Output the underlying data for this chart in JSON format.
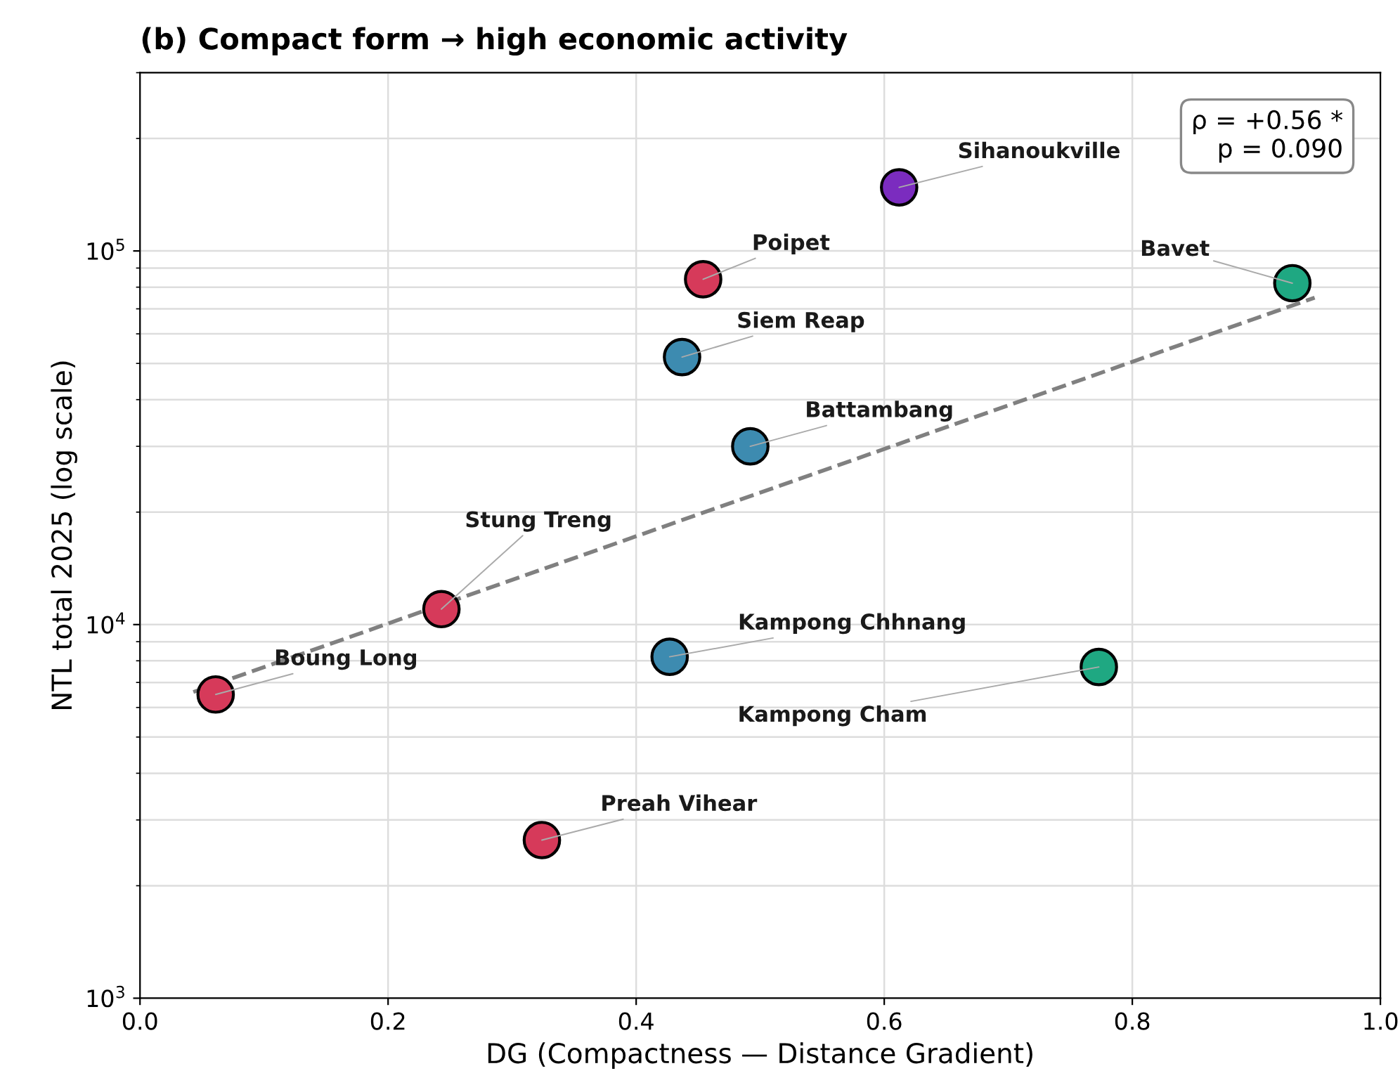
{
  "chart_data": {
    "type": "scatter",
    "title": "(b) Compact form → high economic activity",
    "xlabel": "DG (Compactness — Distance Gradient)",
    "ylabel": "NTL total 2025 (log scale)",
    "series": [
      {
        "x": [
          0.612,
          0.454,
          0.929,
          0.437,
          0.492,
          0.243,
          0.427,
          0.773,
          0.061,
          0.324
        ],
        "values": [
          148000,
          84000,
          82000,
          52000,
          30000,
          11000,
          8200,
          7700,
          6500,
          2650
        ],
        "colors": [
          "#7b2cbf",
          "#d63a5a",
          "#1fa882",
          "#3d8bb0",
          "#3d8bb0",
          "#d63a5a",
          "#3d8bb0",
          "#1fa882",
          "#d63a5a",
          "#d63a5a"
        ],
        "marker": "circle"
      },
      {
        "type": "line",
        "x": [
          0.043,
          0.947
        ],
        "values": [
          6600,
          75000
        ],
        "color": "#808080",
        "line_style": "dashed"
      }
    ],
    "annotations": [
      {
        "text": "Sihanoukville",
        "x": 0.612,
        "y": 148000
      },
      {
        "text": "Poipet",
        "x": 0.454,
        "y": 84000
      },
      {
        "text": "Bavet",
        "x": 0.929,
        "y": 82000
      },
      {
        "text": "Siem Reap",
        "x": 0.437,
        "y": 52000
      },
      {
        "text": "Battambang",
        "x": 0.492,
        "y": 30000
      },
      {
        "text": "Stung Treng",
        "x": 0.243,
        "y": 11000
      },
      {
        "text": "Kampong Chhnang",
        "x": 0.427,
        "y": 8200
      },
      {
        "text": "Kampong Cham",
        "x": 0.773,
        "y": 7700
      },
      {
        "text": "Boung Long",
        "x": 0.061,
        "y": 6500
      },
      {
        "text": "Preah Vihear",
        "x": 0.324,
        "y": 2650
      },
      "ρ = +0.56 *\np = 0.090"
    ],
    "log": "y",
    "xlim": [
      0.0,
      1.0
    ],
    "xticks": [
      {
        "value": 0,
        "label": "0.0"
      },
      0.2,
      0.4,
      0.6,
      0.8,
      {
        "value": 1,
        "label": "1.0"
      }
    ],
    "ylim": [
      1000,
      300000
    ],
    "yticks": [
      {
        "value": 1000,
        "label": "10$^{3}$"
      },
      {
        "value": 10000,
        "label": "10$^{4}$"
      },
      {
        "value": 100000,
        "label": "10$^{5}$"
      }
    ],
    "grid": true,
    "legend": false
  }
}
